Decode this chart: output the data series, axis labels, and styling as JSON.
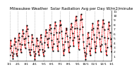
{
  "title": "Milwaukee Weather  Solar Radiation Avg per Day W/m2/minute",
  "y_values": [
    1.2,
    2.8,
    4.5,
    3.2,
    1.8,
    1.0,
    0.5,
    1.5,
    3.5,
    5.0,
    4.2,
    2.8,
    1.5,
    1.0,
    2.5,
    4.5,
    6.0,
    5.2,
    3.8,
    2.5,
    1.8,
    3.5,
    5.5,
    6.8,
    6.0,
    4.8,
    3.5,
    2.8,
    5.0,
    6.5,
    7.8,
    7.0,
    5.5,
    4.0,
    2.5,
    1.8,
    1.2,
    2.5,
    4.2,
    5.8,
    5.0,
    3.5,
    2.0,
    1.0,
    0.3,
    1.5,
    3.2,
    5.0,
    4.5,
    3.2,
    2.0,
    1.2,
    2.5,
    4.2,
    5.8,
    5.2,
    3.8,
    2.5,
    1.8,
    1.0,
    2.2,
    4.0,
    5.5,
    6.8,
    6.2,
    4.8,
    3.5,
    3.0,
    5.0,
    6.8,
    8.0,
    7.2,
    6.0,
    4.5,
    3.0,
    2.2,
    3.8,
    5.8,
    7.2,
    8.5,
    7.8,
    6.2,
    4.8,
    3.2,
    2.2,
    4.2,
    6.2,
    7.8,
    8.8,
    8.0,
    6.5,
    5.0,
    3.5,
    2.2,
    1.2,
    2.5,
    4.2,
    6.0,
    7.2,
    6.8,
    5.5,
    4.2,
    3.0,
    1.8,
    3.2,
    5.2,
    7.0,
    8.2,
    7.5,
    6.0,
    4.5,
    3.2,
    5.2,
    7.2,
    8.8,
    9.8,
    9.0,
    7.2,
    5.5,
    4.0,
    2.5,
    4.8,
    7.0,
    9.0,
    10.2,
    9.2,
    7.5,
    5.8,
    4.2,
    2.8,
    1.8,
    1.0,
    0.3,
    1.5,
    3.2,
    5.0,
    6.2,
    5.2,
    3.8,
    2.2,
    1.2,
    2.8,
    4.8,
    6.8,
    8.2,
    7.2,
    5.8,
    4.2,
    2.8,
    1.8,
    3.2,
    5.2,
    7.2,
    8.8,
    8.0,
    6.2,
    4.8,
    3.2,
    2.0,
    3.5,
    5.5,
    7.5,
    9.0,
    8.2,
    6.8,
    5.2,
    3.8,
    2.2,
    1.2,
    3.0,
    5.0,
    7.0,
    8.5,
    7.8,
    6.2,
    4.8,
    3.2,
    2.0
  ],
  "x_tick_labels": [
    "1/1",
    "2/1",
    "3/1",
    "4/1",
    "5/1",
    "6/1",
    "7/1",
    "8/1",
    "9/1",
    "10/1",
    "11/1",
    "12/1",
    "1/1"
  ],
  "line_color": "#FF0000",
  "marker_color": "#000000",
  "grid_color": "#999999",
  "background_color": "#FFFFFF",
  "ylim": [
    0,
    11
  ],
  "y_ticks": [
    1,
    2,
    3,
    4,
    5,
    6,
    7,
    8,
    9,
    10,
    11
  ],
  "title_fontsize": 4.0,
  "tick_fontsize": 3.2
}
